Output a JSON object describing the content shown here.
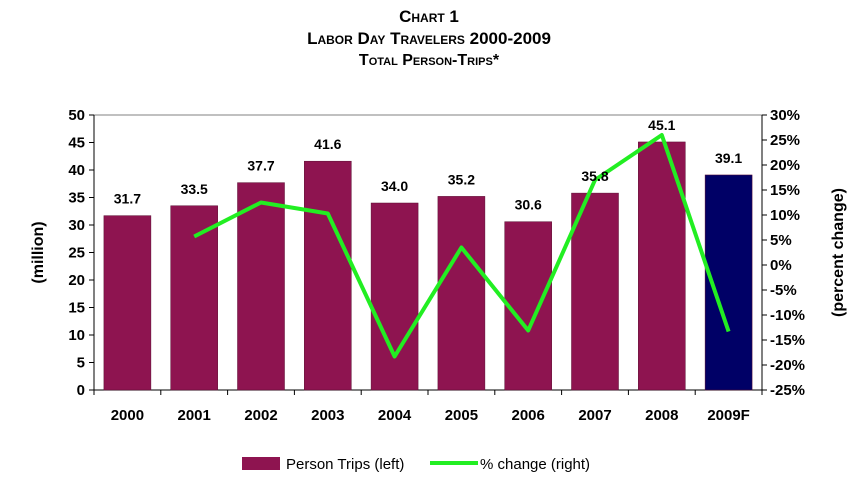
{
  "chart_data": {
    "type": "bar",
    "title": "Chart 1",
    "subtitle_1": "Labor Day Travelers 2000-2009",
    "subtitle_2": "Total Person-Trips*",
    "categories": [
      "2000",
      "2001",
      "2002",
      "2003",
      "2004",
      "2005",
      "2006",
      "2007",
      "2008",
      "2009F"
    ],
    "series": [
      {
        "name": "Person Trips (left)",
        "type": "bar",
        "axis": "left",
        "values": [
          31.7,
          33.5,
          37.7,
          41.6,
          34.0,
          35.2,
          30.6,
          35.8,
          45.1,
          39.1
        ],
        "labels": [
          "31.7",
          "33.5",
          "37.7",
          "41.6",
          "34.0",
          "35.2",
          "30.6",
          "35.8",
          "45.1",
          "39.1"
        ],
        "color": "#8E1450",
        "highlight_color": "#000066"
      },
      {
        "name": "% change (right)",
        "type": "line",
        "axis": "right",
        "values": [
          null,
          5.7,
          12.5,
          10.3,
          -18.3,
          3.5,
          -13.1,
          17.0,
          26.0,
          -13.3
        ],
        "color": "#22EE22"
      }
    ],
    "ylabel": "(million)",
    "y2label": "(percent change)",
    "ylim": [
      0,
      50
    ],
    "y_ticks": [
      "0",
      "5",
      "10",
      "15",
      "20",
      "25",
      "30",
      "35",
      "40",
      "45",
      "50"
    ],
    "y2lim": [
      -25,
      30
    ],
    "y2_ticks": [
      "-25%",
      "-20%",
      "-15%",
      "-10%",
      "-5%",
      "0%",
      "5%",
      "10%",
      "15%",
      "20%",
      "25%",
      "30%"
    ],
    "grid": false,
    "legend": "bottom"
  }
}
